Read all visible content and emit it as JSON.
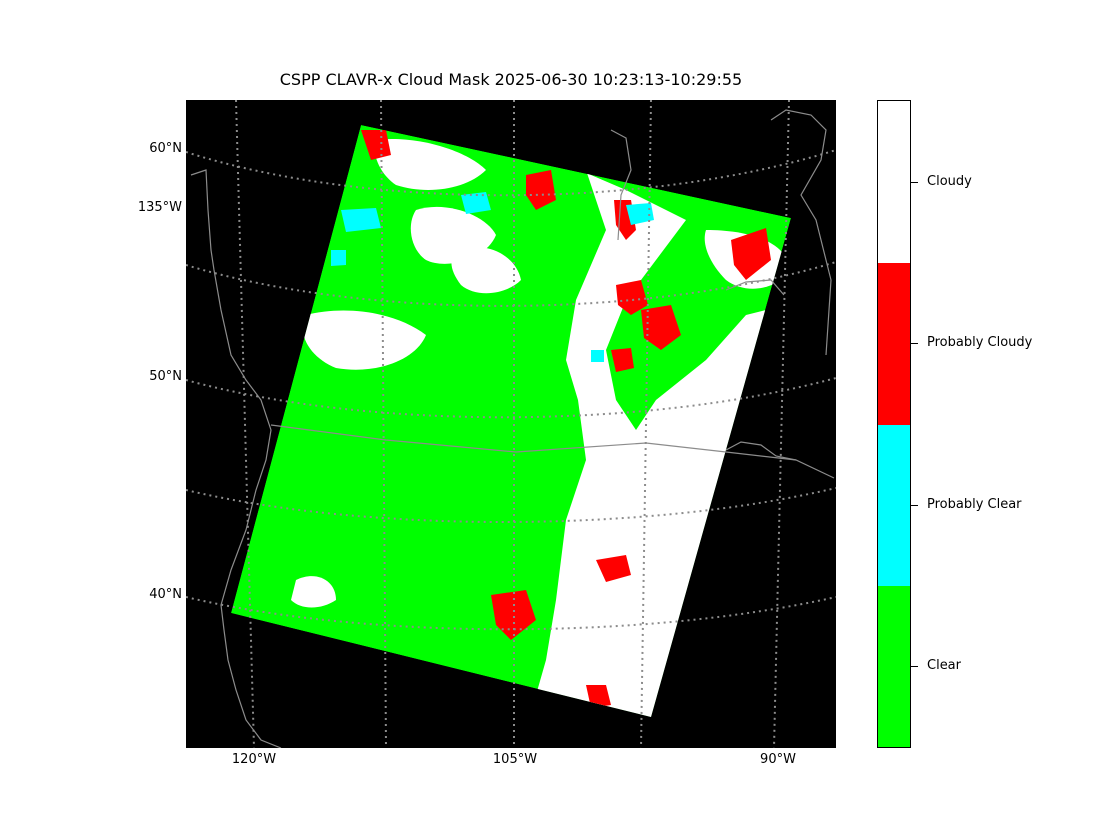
{
  "title": "CSPP CLAVR-x Cloud Mask 2025-06-30 10:23:13-10:29:55",
  "map": {
    "projection": "lambert-conformal",
    "background_color": "#000000",
    "graticule_color": "#8c8c8c",
    "coastline_color": "#8c8c8c",
    "grid": true,
    "lat_labels": [
      "60°N",
      "135°W",
      "50°N",
      "40°N"
    ],
    "lon_labels": [
      "120°W",
      "105°W",
      "90°W"
    ]
  },
  "colorbar": {
    "categories": [
      {
        "label": "Cloudy",
        "color": "#ffffff"
      },
      {
        "label": "Probably Cloudy",
        "color": "#ff0000"
      },
      {
        "label": "Probably Clear",
        "color": "#00ffff"
      },
      {
        "label": "Clear",
        "color": "#00ff00"
      }
    ]
  }
}
